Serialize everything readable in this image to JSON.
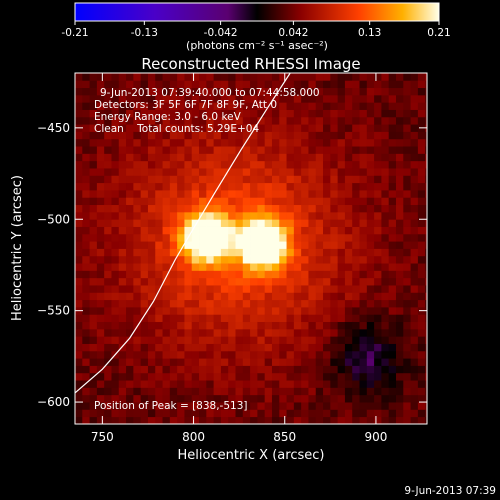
{
  "colorbar": {
    "ticks": [
      "-0.21",
      "-0.13",
      "-0.042",
      "0.042",
      "0.13",
      "0.21"
    ],
    "tick_values": [
      -0.21,
      -0.13,
      -0.042,
      0.042,
      0.13,
      0.21
    ],
    "range": [
      -0.21,
      0.21
    ],
    "unit_label": "(photons cm⁻² s⁻¹ asec⁻²)"
  },
  "chart_data": {
    "type": "heatmap",
    "title": "Reconstructed RHESSI Image",
    "xlabel": "Heliocentric X (arcsec)",
    "ylabel": "Heliocentric Y (arcsec)",
    "xlim": [
      735,
      928
    ],
    "ylim": [
      -612,
      -420
    ],
    "x_ticks": [
      750,
      800,
      850,
      900
    ],
    "y_ticks": [
      -450,
      -500,
      -550,
      -600
    ],
    "colormap": "hot",
    "sources": [
      {
        "x": 807,
        "y": -510,
        "peak": 0.2
      },
      {
        "x": 838,
        "y": -513,
        "peak": 0.21
      }
    ],
    "limb_curve": [
      [
        735,
        -595
      ],
      [
        750,
        -582
      ],
      [
        765,
        -565
      ],
      [
        778,
        -545
      ],
      [
        790,
        -522
      ],
      [
        800,
        -505
      ],
      [
        812,
        -485
      ],
      [
        826,
        -462
      ],
      [
        840,
        -440
      ],
      [
        853,
        -420
      ]
    ]
  },
  "annotations": {
    "time_range": "9-Jun-2013 07:39:40.000 to 07:44:58.000",
    "detectors": "Detectors: 3F 5F 6F 7F 8F 9F, Att 0",
    "energy": "Energy Range: 3.0 - 6.0 keV",
    "method": "Clean    Total counts: 5.29E+04",
    "peak": "Position of Peak = [838,-513]"
  },
  "footer": {
    "timestamp": "9-Jun-2013 07:39"
  }
}
